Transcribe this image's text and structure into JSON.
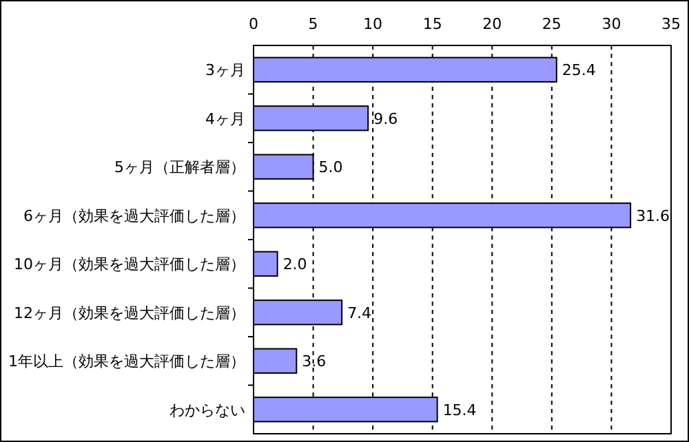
{
  "chart_data": {
    "type": "bar",
    "orientation": "horizontal",
    "categories": [
      "3ヶ月",
      "4ヶ月",
      "5ヶ月（正解者層）",
      "6ヶ月（効果を過大評価した層）",
      "10ヶ月（効果を過大評価した層）",
      "12ヶ月（効果を過大評価した層）",
      "1年以上（効果を過大評価した層）",
      "わからない"
    ],
    "values": [
      25.4,
      9.6,
      5.0,
      31.6,
      2.0,
      7.4,
      3.6,
      15.4
    ],
    "value_labels": [
      "25.4",
      "9.6",
      "5.0",
      "31.6",
      "2.0",
      "7.4",
      "3.6",
      "15.4"
    ],
    "color": "#9999ff",
    "xlim": [
      0,
      35
    ],
    "xticks": [
      0,
      5,
      10,
      15,
      20,
      25,
      30,
      35
    ],
    "grid": "x"
  }
}
